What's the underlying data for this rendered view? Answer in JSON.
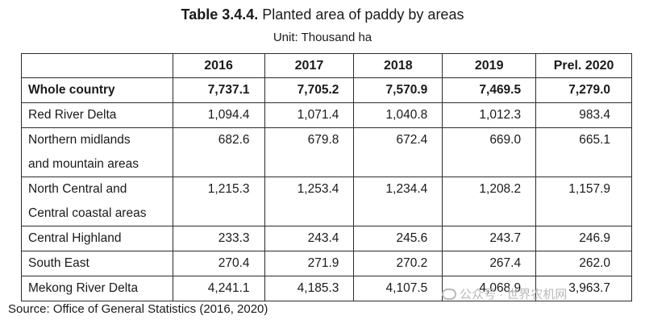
{
  "title": {
    "number": "Table 3.4.4.",
    "text": "Planted area of paddy by areas"
  },
  "unit": "Unit: Thousand ha",
  "table": {
    "headers": [
      "",
      "2016",
      "2017",
      "2018",
      "2019",
      "Prel. 2020"
    ],
    "rows": [
      {
        "label": "Whole country",
        "values": [
          "7,737.1",
          "7,705.2",
          "7,570.9",
          "7,469.5",
          "7,279.0"
        ]
      },
      {
        "label": "Red River Delta",
        "values": [
          "1,094.4",
          "1,071.4",
          "1,040.8",
          "1,012.3",
          "983.4"
        ]
      },
      {
        "label_lines": [
          "Northern midlands",
          "and mountain areas"
        ],
        "values": [
          "682.6",
          "679.8",
          "672.4",
          "669.0",
          "665.1"
        ]
      },
      {
        "label_lines": [
          "North Central and",
          "Central coastal areas"
        ],
        "values": [
          "1,215.3",
          "1,253.4",
          "1,234.4",
          "1,208.2",
          "1,157.9"
        ]
      },
      {
        "label": "Central Highland",
        "values": [
          "233.3",
          "243.4",
          "245.6",
          "243.7",
          "246.9"
        ]
      },
      {
        "label": "South East",
        "values": [
          "270.4",
          "271.9",
          "270.2",
          "267.4",
          "262.0"
        ]
      },
      {
        "label": "Mekong River Delta",
        "values": [
          "4,241.1",
          "4,185.3",
          "4,107.5",
          "4,068.9",
          "3,963.7"
        ]
      }
    ]
  },
  "source": "Source: Office of General Statistics (2016, 2020)",
  "watermark": "公众号 · 世界农机网"
}
